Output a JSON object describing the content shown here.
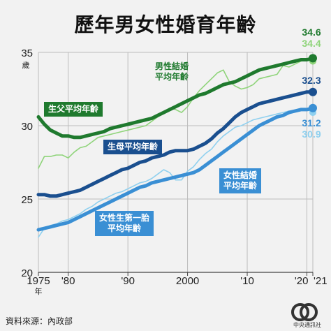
{
  "title": "歷年男女性婚育年齡",
  "source": "資料來源：內政部",
  "logo_text": "CNA 中央通訊社",
  "chart_data": {
    "type": "line",
    "title": "歷年男女性婚育年齡",
    "ylabel": "歲",
    "xlabel": "年",
    "ylim": [
      20,
      35
    ],
    "xlim": [
      1975,
      2021
    ],
    "yticks": [
      20,
      25,
      30,
      35
    ],
    "xtick_labels": [
      {
        "x": 1975,
        "label": "1975"
      },
      {
        "x": 1980,
        "label": "'80"
      },
      {
        "x": 1990,
        "label": "'90"
      },
      {
        "x": 2000,
        "label": "2000"
      },
      {
        "x": 2010,
        "label": "'10"
      },
      {
        "x": 2020,
        "label": "'20"
      },
      {
        "x": 2021,
        "label": "'21"
      }
    ],
    "grid": true,
    "series": [
      {
        "name": "男性結婚平均年齡",
        "color": "#8fd47a",
        "labels": [
          "男性結婚",
          "平均年齡"
        ],
        "x": [
          1975,
          1976,
          1977,
          1978,
          1979,
          1980,
          1981,
          1982,
          1983,
          1984,
          1985,
          1986,
          1987,
          1988,
          1989,
          1990,
          1991,
          1992,
          1993,
          1994,
          1995,
          1996,
          1997,
          1998,
          1999,
          2000,
          2001,
          2002,
          2003,
          2004,
          2005,
          2006,
          2007,
          2008,
          2009,
          2010,
          2011,
          2012,
          2013,
          2014,
          2015,
          2016,
          2017,
          2018,
          2019,
          2020,
          2021
        ],
        "values": [
          27.1,
          27.9,
          27.9,
          28.0,
          28.0,
          27.8,
          28.2,
          28.5,
          28.6,
          28.9,
          29.2,
          29.3,
          29.4,
          29.5,
          29.6,
          29.7,
          29.8,
          29.9,
          30.0,
          30.3,
          30.6,
          30.9,
          31.2,
          31.1,
          30.9,
          31.3,
          31.9,
          32.4,
          32.8,
          33.2,
          33.6,
          33.8,
          33.0,
          32.7,
          32.5,
          32.6,
          32.8,
          33.2,
          33.3,
          33.4,
          33.5,
          34.1,
          34.0,
          34.2,
          34.4,
          34.6,
          34.4
        ],
        "end_label": "34.4"
      },
      {
        "name": "生父平均年齡",
        "color": "#1f7a2e",
        "labels": [
          "生父平均年齡"
        ],
        "x": [
          1975,
          1976,
          1977,
          1978,
          1979,
          1980,
          1981,
          1982,
          1983,
          1984,
          1985,
          1986,
          1987,
          1988,
          1989,
          1990,
          1991,
          1992,
          1993,
          1994,
          1995,
          1996,
          1997,
          1998,
          1999,
          2000,
          2001,
          2002,
          2003,
          2004,
          2005,
          2006,
          2007,
          2008,
          2009,
          2010,
          2011,
          2012,
          2013,
          2014,
          2015,
          2016,
          2017,
          2018,
          2019,
          2020,
          2021
        ],
        "values": [
          30.6,
          30.1,
          29.7,
          29.5,
          29.3,
          29.3,
          29.2,
          29.2,
          29.3,
          29.4,
          29.5,
          29.6,
          29.8,
          29.9,
          30.0,
          30.1,
          30.2,
          30.3,
          30.4,
          30.5,
          30.7,
          30.9,
          31.1,
          31.3,
          31.5,
          31.7,
          31.9,
          32.1,
          32.2,
          32.4,
          32.6,
          32.8,
          32.9,
          33.0,
          33.2,
          33.4,
          33.6,
          33.8,
          33.9,
          34.0,
          34.1,
          34.2,
          34.3,
          34.4,
          34.5,
          34.5,
          34.6
        ],
        "end_label": "34.6"
      },
      {
        "name": "生母平均年齡",
        "color": "#1a4f8f",
        "labels": [
          "生母平均年齡"
        ],
        "x": [
          1975,
          1976,
          1977,
          1978,
          1979,
          1980,
          1981,
          1982,
          1983,
          1984,
          1985,
          1986,
          1987,
          1988,
          1989,
          1990,
          1991,
          1992,
          1993,
          1994,
          1995,
          1996,
          1997,
          1998,
          1999,
          2000,
          2001,
          2002,
          2003,
          2004,
          2005,
          2006,
          2007,
          2008,
          2009,
          2010,
          2011,
          2012,
          2013,
          2014,
          2015,
          2016,
          2017,
          2018,
          2019,
          2020,
          2021
        ],
        "values": [
          25.3,
          25.3,
          25.2,
          25.2,
          25.3,
          25.4,
          25.5,
          25.6,
          25.8,
          26.0,
          26.2,
          26.4,
          26.6,
          26.8,
          27.0,
          27.1,
          27.3,
          27.5,
          27.6,
          27.8,
          27.9,
          28.0,
          28.2,
          28.3,
          28.3,
          28.3,
          28.4,
          28.6,
          28.8,
          29.1,
          29.5,
          29.8,
          30.2,
          30.6,
          30.9,
          31.1,
          31.3,
          31.5,
          31.6,
          31.7,
          31.8,
          31.9,
          32.0,
          32.1,
          32.2,
          32.3,
          32.3
        ],
        "end_label": "32.3"
      },
      {
        "name": "女性結婚平均年齡",
        "color": "#8fd0ef",
        "labels": [
          "女性結婚",
          "平均年齡"
        ],
        "x": [
          1975,
          1976,
          1977,
          1978,
          1979,
          1980,
          1981,
          1982,
          1983,
          1984,
          1985,
          1986,
          1987,
          1988,
          1989,
          1990,
          1991,
          1992,
          1993,
          1994,
          1995,
          1996,
          1997,
          1998,
          1999,
          2000,
          2001,
          2002,
          2003,
          2004,
          2005,
          2006,
          2007,
          2008,
          2009,
          2010,
          2011,
          2012,
          2013,
          2014,
          2015,
          2016,
          2017,
          2018,
          2019,
          2020,
          2021
        ],
        "values": [
          22.4,
          23.0,
          23.2,
          23.3,
          23.5,
          23.6,
          23.8,
          24.0,
          24.3,
          24.5,
          24.8,
          25.0,
          25.2,
          25.4,
          25.5,
          25.7,
          25.9,
          26.1,
          26.2,
          26.4,
          26.7,
          27.0,
          26.8,
          26.3,
          26.3,
          26.9,
          27.2,
          27.7,
          28.1,
          28.4,
          28.9,
          29.3,
          29.6,
          29.9,
          30.0,
          30.2,
          30.4,
          30.5,
          30.6,
          30.7,
          30.8,
          30.9,
          31.0,
          31.0,
          31.1,
          31.1,
          30.9
        ],
        "end_label": "30.9"
      },
      {
        "name": "女性生第一胎平均年齡",
        "color": "#3a8fd4",
        "labels": [
          "女性生第一胎",
          "平均年齡"
        ],
        "x": [
          1975,
          1976,
          1977,
          1978,
          1979,
          1980,
          1981,
          1982,
          1983,
          1984,
          1985,
          1986,
          1987,
          1988,
          1989,
          1990,
          1991,
          1992,
          1993,
          1994,
          1995,
          1996,
          1997,
          1998,
          1999,
          2000,
          2001,
          2002,
          2003,
          2004,
          2005,
          2006,
          2007,
          2008,
          2009,
          2010,
          2011,
          2012,
          2013,
          2014,
          2015,
          2016,
          2017,
          2018,
          2019,
          2020,
          2021
        ],
        "values": [
          22.9,
          23.0,
          23.1,
          23.2,
          23.3,
          23.4,
          23.6,
          23.8,
          24.0,
          24.2,
          24.4,
          24.6,
          24.8,
          25.0,
          25.2,
          25.4,
          25.6,
          25.8,
          25.9,
          26.1,
          26.2,
          26.3,
          26.4,
          26.5,
          26.6,
          26.7,
          26.8,
          27.0,
          27.3,
          27.6,
          27.9,
          28.2,
          28.5,
          28.8,
          29.1,
          29.4,
          29.7,
          30.0,
          30.2,
          30.4,
          30.6,
          30.7,
          30.9,
          31.0,
          31.1,
          31.1,
          31.2
        ],
        "end_label": "31.2"
      }
    ]
  }
}
